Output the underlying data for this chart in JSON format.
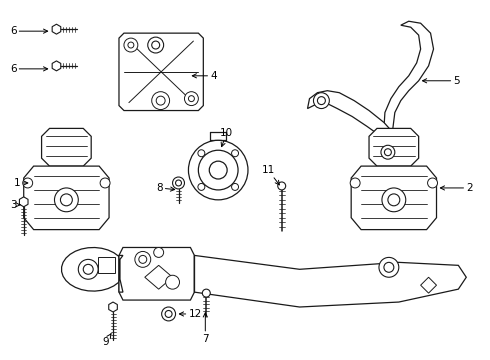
{
  "bg_color": "#ffffff",
  "line_color": "#1a1a1a",
  "label_color": "#000000",
  "lw": 0.9,
  "figsize": [
    4.9,
    3.6
  ],
  "dpi": 100
}
